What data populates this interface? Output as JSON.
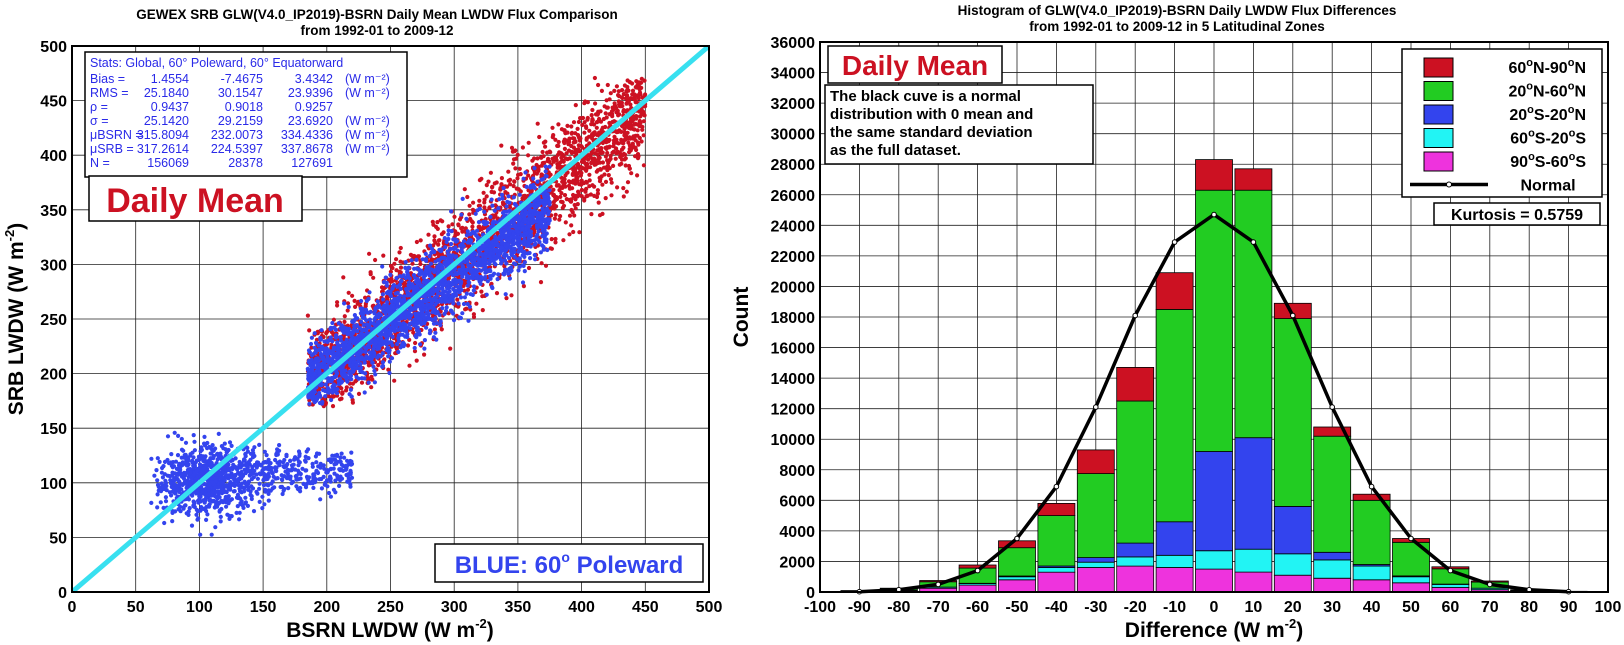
{
  "colors": {
    "red": "#cc1122",
    "blue": "#3344ee",
    "cyan_line": "#38e0f0",
    "green": "#22cc22",
    "hist_blue": "#3344ee",
    "cyan": "#22f4f4",
    "magenta": "#ee33dd",
    "normal": "#000000",
    "stats_text": "#2a2ae8",
    "label_red": "#cc1122"
  },
  "chart_data": [
    {
      "type": "scatter",
      "title_line1": "GEWEX SRB GLW(V4.0_IP2019)-BSRN Daily Mean LWDW Flux Comparison",
      "title_line2": "from 1992-01 to 2009-12",
      "xlabel": "BSRN LWDW (W m",
      "xlabel_sup": "-2",
      "xlabel_tail": ")",
      "ylabel": "SRB LWDW (W m",
      "ylabel_sup": "-2",
      "ylabel_tail": ")",
      "xlim": [
        0,
        500
      ],
      "ylim": [
        0,
        500
      ],
      "xticks": [
        "0",
        "50",
        "100",
        "150",
        "200",
        "250",
        "300",
        "350",
        "400",
        "450",
        "500"
      ],
      "yticks": [
        "0",
        "50",
        "100",
        "150",
        "200",
        "250",
        "300",
        "350",
        "400",
        "450",
        "500"
      ],
      "grid": true,
      "label": "Daily Mean",
      "corner_label": "BLUE: 60",
      "corner_label_sup": "o",
      "corner_label_tail": " Poleward",
      "one_to_one_line": [
        [
          0,
          0
        ],
        [
          500,
          500
        ]
      ],
      "series": [
        {
          "name": "Global",
          "color": "red",
          "approx_extent": {
            "x": [
              60,
              455
            ],
            "y": [
              45,
              470
            ]
          }
        },
        {
          "name": "60 Poleward",
          "color": "blue",
          "approx_extent": {
            "x": [
              60,
              360
            ],
            "y": [
              45,
              420
            ]
          }
        }
      ],
      "stats": {
        "header": "Stats: Global, 60° Poleward, 60° Equatorward",
        "rows": [
          {
            "name": "Bias =",
            "values": [
              "1.4554",
              "-7.4675",
              "3.4342"
            ],
            "unit": "(W m⁻²)"
          },
          {
            "name": "RMS =",
            "values": [
              "25.1840",
              "30.1547",
              "23.9396"
            ],
            "unit": "(W m⁻²)"
          },
          {
            "name": "ρ =",
            "values": [
              "0.9437",
              "0.9018",
              "0.9257"
            ],
            "unit": ""
          },
          {
            "name": "σ =",
            "values": [
              "25.1420",
              "29.2159",
              "23.6920"
            ],
            "unit": "(W m⁻²)"
          },
          {
            "name": "μBSRN =",
            "values": [
              "315.8094",
              "232.0073",
              "334.4336"
            ],
            "unit": "(W m⁻²)"
          },
          {
            "name": "μSRB =",
            "values": [
              "317.2614",
              "224.5397",
              "337.8678"
            ],
            "unit": "(W m⁻²)"
          },
          {
            "name": "N =",
            "values": [
              "156069",
              "28378",
              "127691"
            ],
            "unit": ""
          }
        ]
      }
    },
    {
      "type": "bar",
      "stacked": true,
      "title_line1": "Histogram of GLW(V4.0_IP2019)-BSRN Daily LWDW Flux Differences",
      "title_line2": "from 1992-01 to 2009-12 in 5 Latitudinal Zones",
      "xlabel": "Difference (W m",
      "xlabel_sup": "-2",
      "xlabel_tail": ")",
      "ylabel": "Count",
      "xlim": [
        -100,
        100
      ],
      "ylim": [
        0,
        36000
      ],
      "xticks": [
        "-100",
        "-90",
        "-80",
        "-70",
        "-60",
        "-50",
        "-40",
        "-30",
        "-20",
        "-10",
        "0",
        "10",
        "20",
        "30",
        "40",
        "50",
        "60",
        "70",
        "80",
        "90",
        "100"
      ],
      "yticks": [
        "0",
        "2000",
        "4000",
        "6000",
        "8000",
        "10000",
        "12000",
        "14000",
        "16000",
        "18000",
        "20000",
        "22000",
        "24000",
        "26000",
        "28000",
        "30000",
        "32000",
        "34000",
        "36000"
      ],
      "grid": true,
      "label": "Daily Mean",
      "note": [
        "The black cuve is a normal",
        "distribution with 0 mean and",
        "the same standard deviation",
        "as the full dataset."
      ],
      "kurtosis": "Kurtosis = 0.5759",
      "legend_position": "top-right",
      "x": [
        -90,
        -80,
        -70,
        -60,
        -50,
        -40,
        -30,
        -20,
        -10,
        0,
        10,
        20,
        30,
        40,
        50,
        60,
        70,
        80,
        90
      ],
      "series": [
        {
          "legend": "90°S-60°S",
          "color": "magenta",
          "values": [
            50,
            100,
            250,
            450,
            800,
            1300,
            1600,
            1700,
            1600,
            1500,
            1300,
            1100,
            900,
            800,
            600,
            300,
            150,
            50,
            20
          ]
        },
        {
          "legend": "60°S-20°S",
          "color": "cyan",
          "values": [
            10,
            30,
            70,
            100,
            200,
            300,
            350,
            600,
            800,
            1200,
            1500,
            1400,
            1200,
            900,
            400,
            200,
            100,
            30,
            10
          ]
        },
        {
          "legend": "20°S-20°N",
          "color": "hist_blue",
          "values": [
            0,
            0,
            0,
            20,
            50,
            100,
            300,
            900,
            2200,
            6500,
            7300,
            3100,
            500,
            100,
            50,
            20,
            0,
            0,
            0
          ]
        },
        {
          "legend": "20°N-60°N",
          "color": "green",
          "values": [
            20,
            100,
            350,
            1000,
            1850,
            3300,
            5500,
            9300,
            13900,
            17100,
            16200,
            12300,
            7600,
            4200,
            2200,
            1000,
            400,
            50,
            10
          ]
        },
        {
          "legend": "60°N-90°N",
          "color": "red",
          "values": [
            10,
            20,
            80,
            200,
            450,
            800,
            1550,
            2200,
            2400,
            2000,
            1400,
            1000,
            600,
            400,
            250,
            130,
            70,
            20,
            5
          ]
        }
      ],
      "legend_order": [
        "60°N-90°N",
        "20°N-60°N",
        "20°S-20°N",
        "60°S-20°S",
        "90°S-60°S",
        "Normal"
      ],
      "normal_curve": {
        "name": "Normal",
        "x": [
          -90,
          -80,
          -70,
          -60,
          -50,
          -40,
          -30,
          -20,
          -10,
          0,
          10,
          20,
          30,
          40,
          50,
          60,
          70,
          80,
          90
        ],
        "values": [
          20,
          150,
          500,
          1400,
          3500,
          6900,
          12100,
          18100,
          22900,
          24700,
          22900,
          18100,
          12100,
          6900,
          3500,
          1400,
          500,
          150,
          20
        ]
      }
    }
  ]
}
